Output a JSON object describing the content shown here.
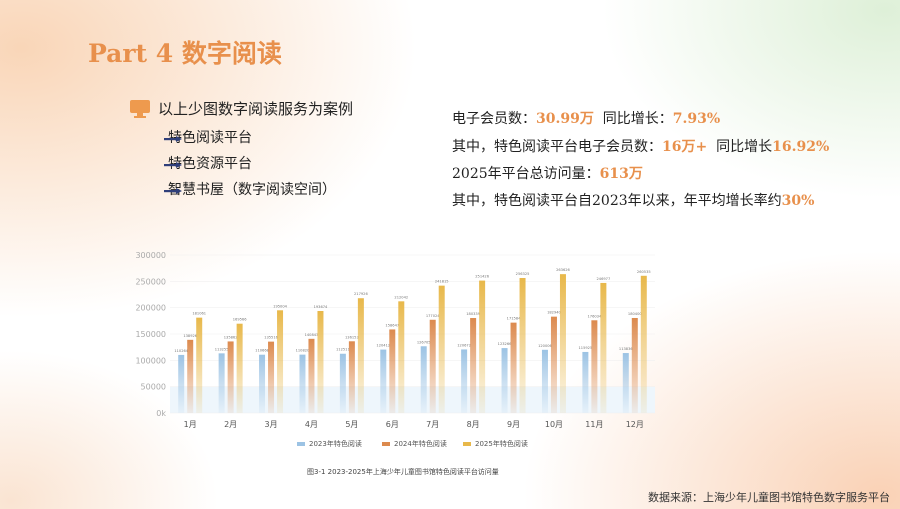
{
  "title": "Part 4 数字阅读",
  "intro": "以上少图数字阅读服务为案例",
  "items": [
    "特色阅读平台",
    "特色资源平台",
    "智慧书屋（数字阅读空间）"
  ],
  "stats": [
    {
      "pre": "电子会员数：",
      "v1": "30.99万",
      "mid": "  同比增长：",
      "v2": "7.93%"
    },
    {
      "pre": "其中，特色阅读平台电子会员数：",
      "v1": "16万+",
      "mid": "  同比增长",
      "v2": "16.92%"
    },
    {
      "pre": "2025年平台总访问量：",
      "v1": "613万",
      "mid": "",
      "v2": ""
    },
    {
      "pre": "其中，特色阅读平台自2023年以来，年平均增长率约",
      "v1": "30%",
      "mid": "",
      "v2": ""
    }
  ],
  "source": "数据来源：上海少年儿童图书馆特色数字服务平台",
  "colors": {
    "accent": "#e8904c",
    "s2023": "#9cc3e4",
    "s2024": "#dc8a4e",
    "s2025": "#e8b84a"
  },
  "chart_data": {
    "type": "bar",
    "title": "图3-1 2023-2025年上海少年儿童图书馆特色阅读平台访问量",
    "categories": [
      "1月",
      "2月",
      "3月",
      "4月",
      "5月",
      "6月",
      "7月",
      "8月",
      "9月",
      "10月",
      "11月",
      "12月"
    ],
    "yticks": [
      "0k",
      "50000",
      "100000",
      "150000",
      "200000",
      "250000",
      "300000"
    ],
    "ylim": [
      0,
      300000
    ],
    "legend_position": "bottom",
    "series": [
      {
        "name": "2023年特色阅读",
        "values": [
          110264,
          113255,
          110668,
          110820,
          112511,
          120412,
          126705,
          120672,
          123266,
          120006,
          115925,
          113836
        ]
      },
      {
        "name": "2024年特色阅读",
        "values": [
          138926,
          135862,
          135516,
          140843,
          136153,
          158647,
          177024,
          180339,
          171584,
          182940,
          176034,
          180400
        ]
      },
      {
        "name": "2025年特色阅读",
        "values": [
          181061,
          169566,
          195004,
          193674,
          217926,
          212042,
          241815,
          251426,
          256325,
          263626,
          246977,
          260535
        ]
      }
    ]
  }
}
